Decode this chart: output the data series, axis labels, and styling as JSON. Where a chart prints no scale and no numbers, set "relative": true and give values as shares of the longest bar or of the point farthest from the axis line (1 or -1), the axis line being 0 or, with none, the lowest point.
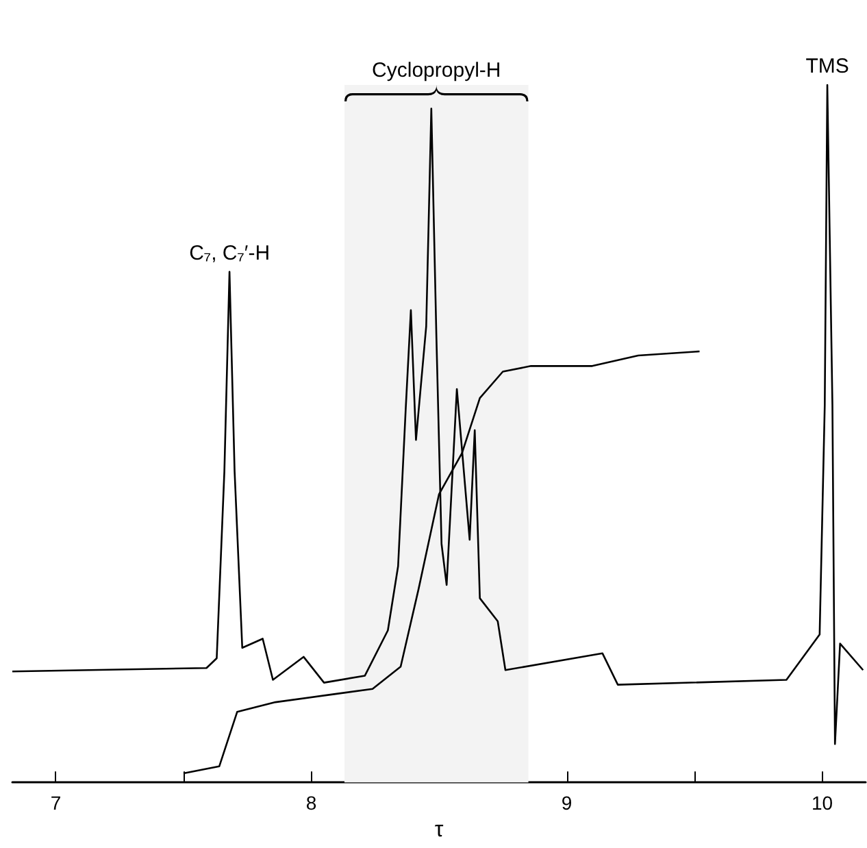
{
  "chart_data": {
    "type": "line",
    "relative": true,
    "xlabel": "τ",
    "xlim": [
      6.83,
      10.17
    ],
    "xticks": [
      7,
      {
        "value": 7.5,
        "label": null
      },
      8,
      {
        "value": 8.5,
        "label": null
      },
      9,
      {
        "value": 9.5,
        "label": null
      },
      10
    ],
    "series": [
      {
        "color": "#000000",
        "x": [
          6.83,
          7.59,
          7.63,
          7.66,
          7.68,
          7.7,
          7.73,
          7.81,
          7.85,
          7.97,
          8.05,
          8.21,
          8.3,
          8.34,
          8.37,
          8.39,
          8.41,
          8.45,
          8.47,
          8.49,
          8.51,
          8.53,
          8.57,
          8.62,
          8.64,
          8.66,
          8.73,
          8.76,
          9.14,
          9.2,
          9.86,
          9.99,
          10.01,
          10.02,
          10.04,
          10.05,
          10.07,
          10.16
        ],
        "values": [
          0.159,
          0.164,
          0.178,
          0.446,
          0.732,
          0.446,
          0.193,
          0.206,
          0.147,
          0.18,
          0.143,
          0.153,
          0.218,
          0.31,
          0.537,
          0.677,
          0.491,
          0.654,
          0.966,
          0.637,
          0.342,
          0.283,
          0.564,
          0.348,
          0.505,
          0.264,
          0.231,
          0.161,
          0.185,
          0.14,
          0.147,
          0.212,
          0.541,
          1,
          0.541,
          0.055,
          0.199,
          0.161
        ]
      },
      {
        "color": "#000000",
        "x": [
          7.5,
          7.64,
          7.71,
          7.86,
          8.08,
          8.24,
          8.35,
          8.42,
          8.5,
          8.59,
          8.66,
          8.75,
          8.86,
          9.1,
          9.28,
          9.52
        ],
        "values": [
          0.013,
          0.023,
          0.101,
          0.115,
          0.126,
          0.134,
          0.166,
          0.277,
          0.413,
          0.472,
          0.551,
          0.589,
          0.597,
          0.597,
          0.612,
          0.618
        ]
      }
    ],
    "annotations": [
      {
        "text": "C₇, C₇′-H",
        "x": 7.68,
        "y": 0.732
      },
      {
        "text": "TMS",
        "x": 10.02,
        "y": 1
      }
    ],
    "bands": [
      {
        "axis": "x",
        "from": 8.13,
        "to": 8.85,
        "label": "Cyclopropyl-H"
      }
    ],
    "grid": false,
    "marker": "none",
    "line_style": "solid"
  }
}
